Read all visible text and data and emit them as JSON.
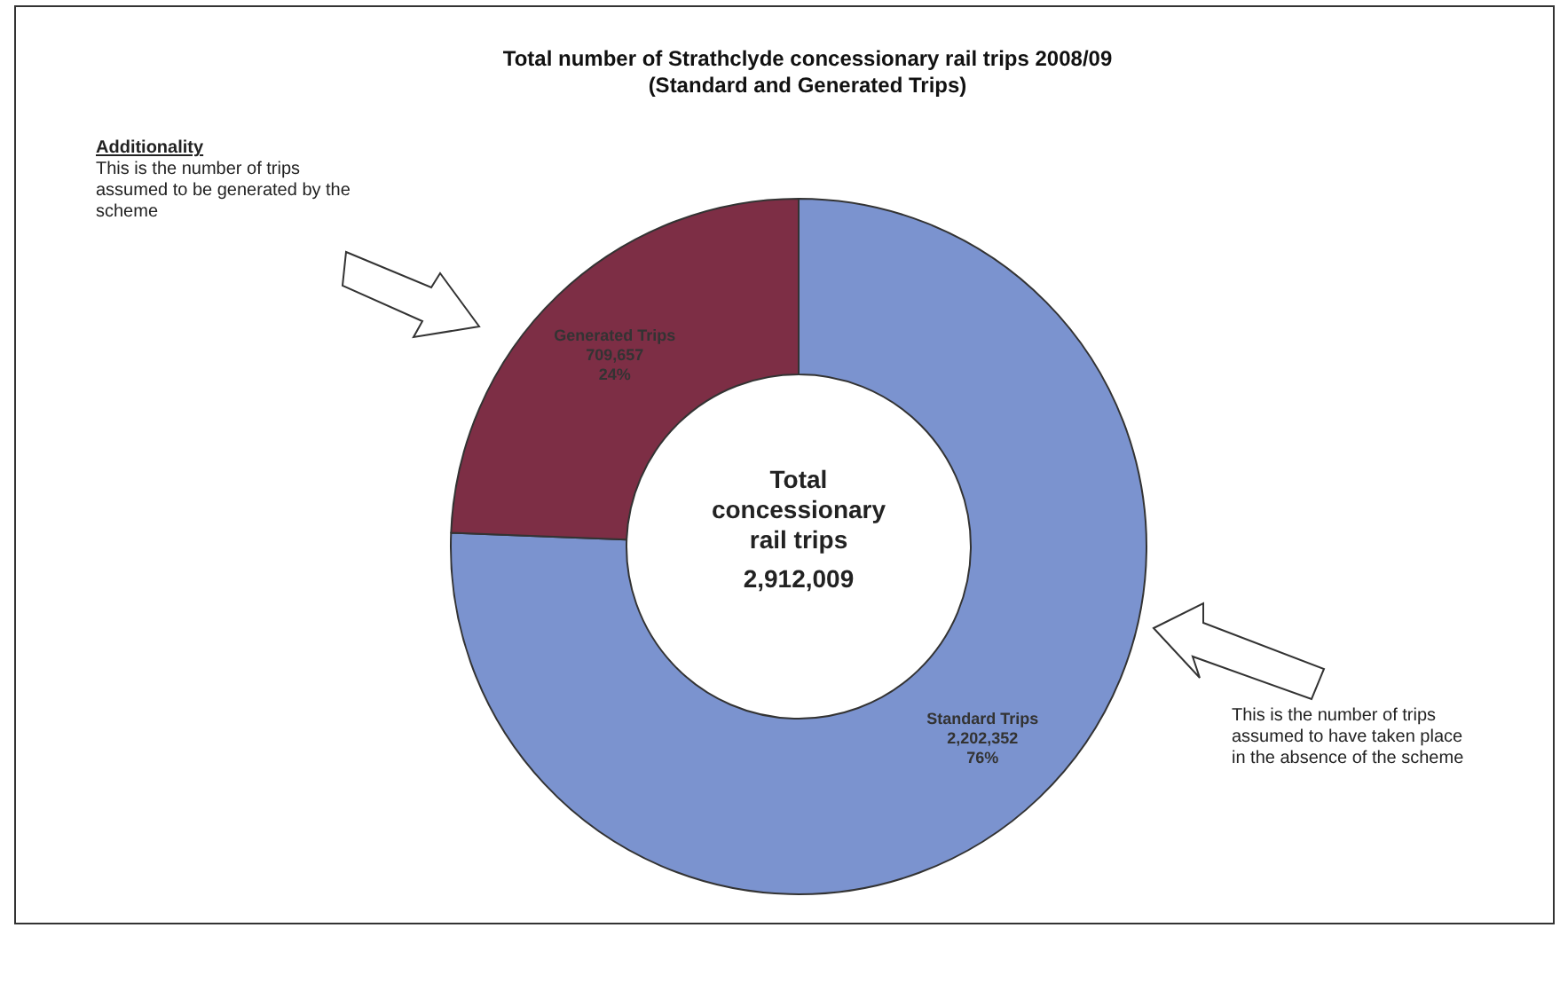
{
  "chart_data": {
    "type": "donut",
    "title": "Total number of Strathclyde concessionary rail trips 2008/09",
    "subtitle": "(Standard and Generated Trips)",
    "categories": [
      "Standard Trips",
      "Generated Trips"
    ],
    "values": [
      2202352,
      709657
    ],
    "colors": [
      "#7b93cf",
      "#7d2e45"
    ],
    "value_labels": [
      "2,202,352\n76%",
      "709,657\n24%"
    ],
    "annotations": [
      "Additionality",
      "This is the number of trips assumed to be generated by the scheme",
      "This is the number of trips assumed to have taken place in the absence of the scheme",
      "Total concessionary rail trips",
      "2,912,009"
    ]
  }
}
